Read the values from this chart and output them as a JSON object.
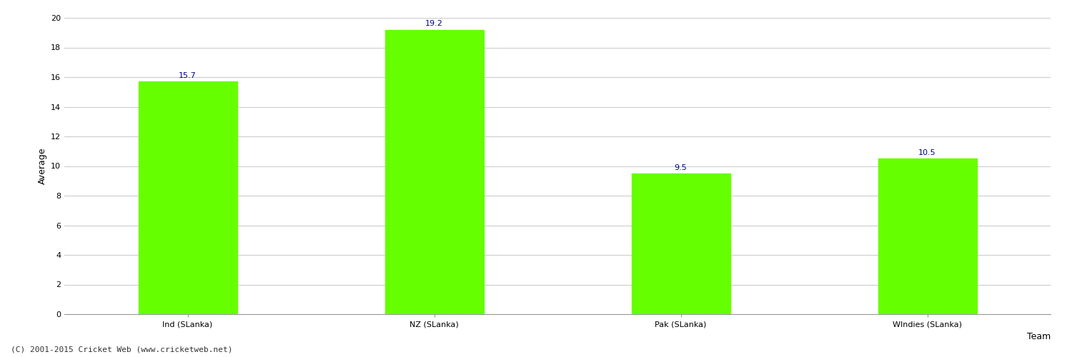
{
  "categories": [
    "Ind (SLanka)",
    "NZ (SLanka)",
    "Pak (SLanka)",
    "WIndies (SLanka)"
  ],
  "values": [
    15.7,
    19.2,
    9.5,
    10.5
  ],
  "bar_color": "#66ff00",
  "bar_edge_color": "#66ff00",
  "xlabel": "Team",
  "ylabel": "Average",
  "ylim": [
    0,
    20
  ],
  "yticks": [
    0,
    2,
    4,
    6,
    8,
    10,
    12,
    14,
    16,
    18,
    20
  ],
  "value_label_color": "#00008b",
  "value_label_fontsize": 8,
  "axis_label_fontsize": 9,
  "tick_label_fontsize": 8,
  "background_color": "#ffffff",
  "grid_color": "#cccccc",
  "footer_text": "(C) 2001-2015 Cricket Web (www.cricketweb.net)",
  "footer_fontsize": 8,
  "bar_width": 0.4
}
